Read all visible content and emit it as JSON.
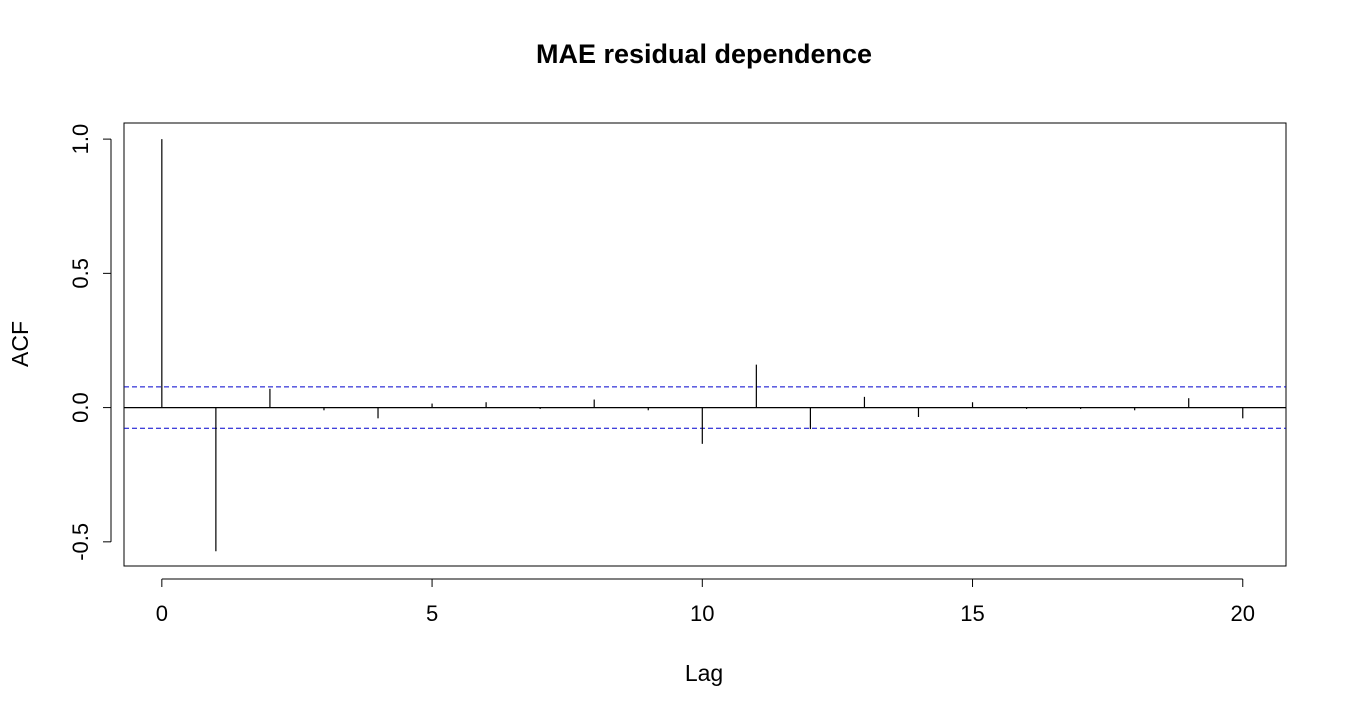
{
  "chart_data": {
    "type": "bar",
    "title": "MAE residual dependence",
    "xlabel": "Lag",
    "ylabel": "ACF",
    "x_ticks": [
      "0",
      "5",
      "10",
      "15",
      "20"
    ],
    "y_ticks": [
      "-0.5",
      "0.0",
      "0.5",
      "1.0"
    ],
    "xlim": [
      -0.7,
      20.8
    ],
    "ylim": [
      -0.59,
      1.06
    ],
    "lags": [
      0,
      1,
      2,
      3,
      4,
      5,
      6,
      7,
      8,
      9,
      10,
      11,
      12,
      13,
      14,
      15,
      16,
      17,
      18,
      19,
      20
    ],
    "acf": [
      1.0,
      -0.535,
      0.07,
      -0.01,
      -0.04,
      0.015,
      0.02,
      -0.005,
      0.03,
      -0.01,
      -0.135,
      0.16,
      -0.08,
      0.04,
      -0.035,
      0.02,
      -0.005,
      -0.005,
      -0.01,
      0.035,
      -0.04
    ],
    "confidence_bound": 0.077,
    "confidence_color": "#0000cd",
    "grid": false
  }
}
